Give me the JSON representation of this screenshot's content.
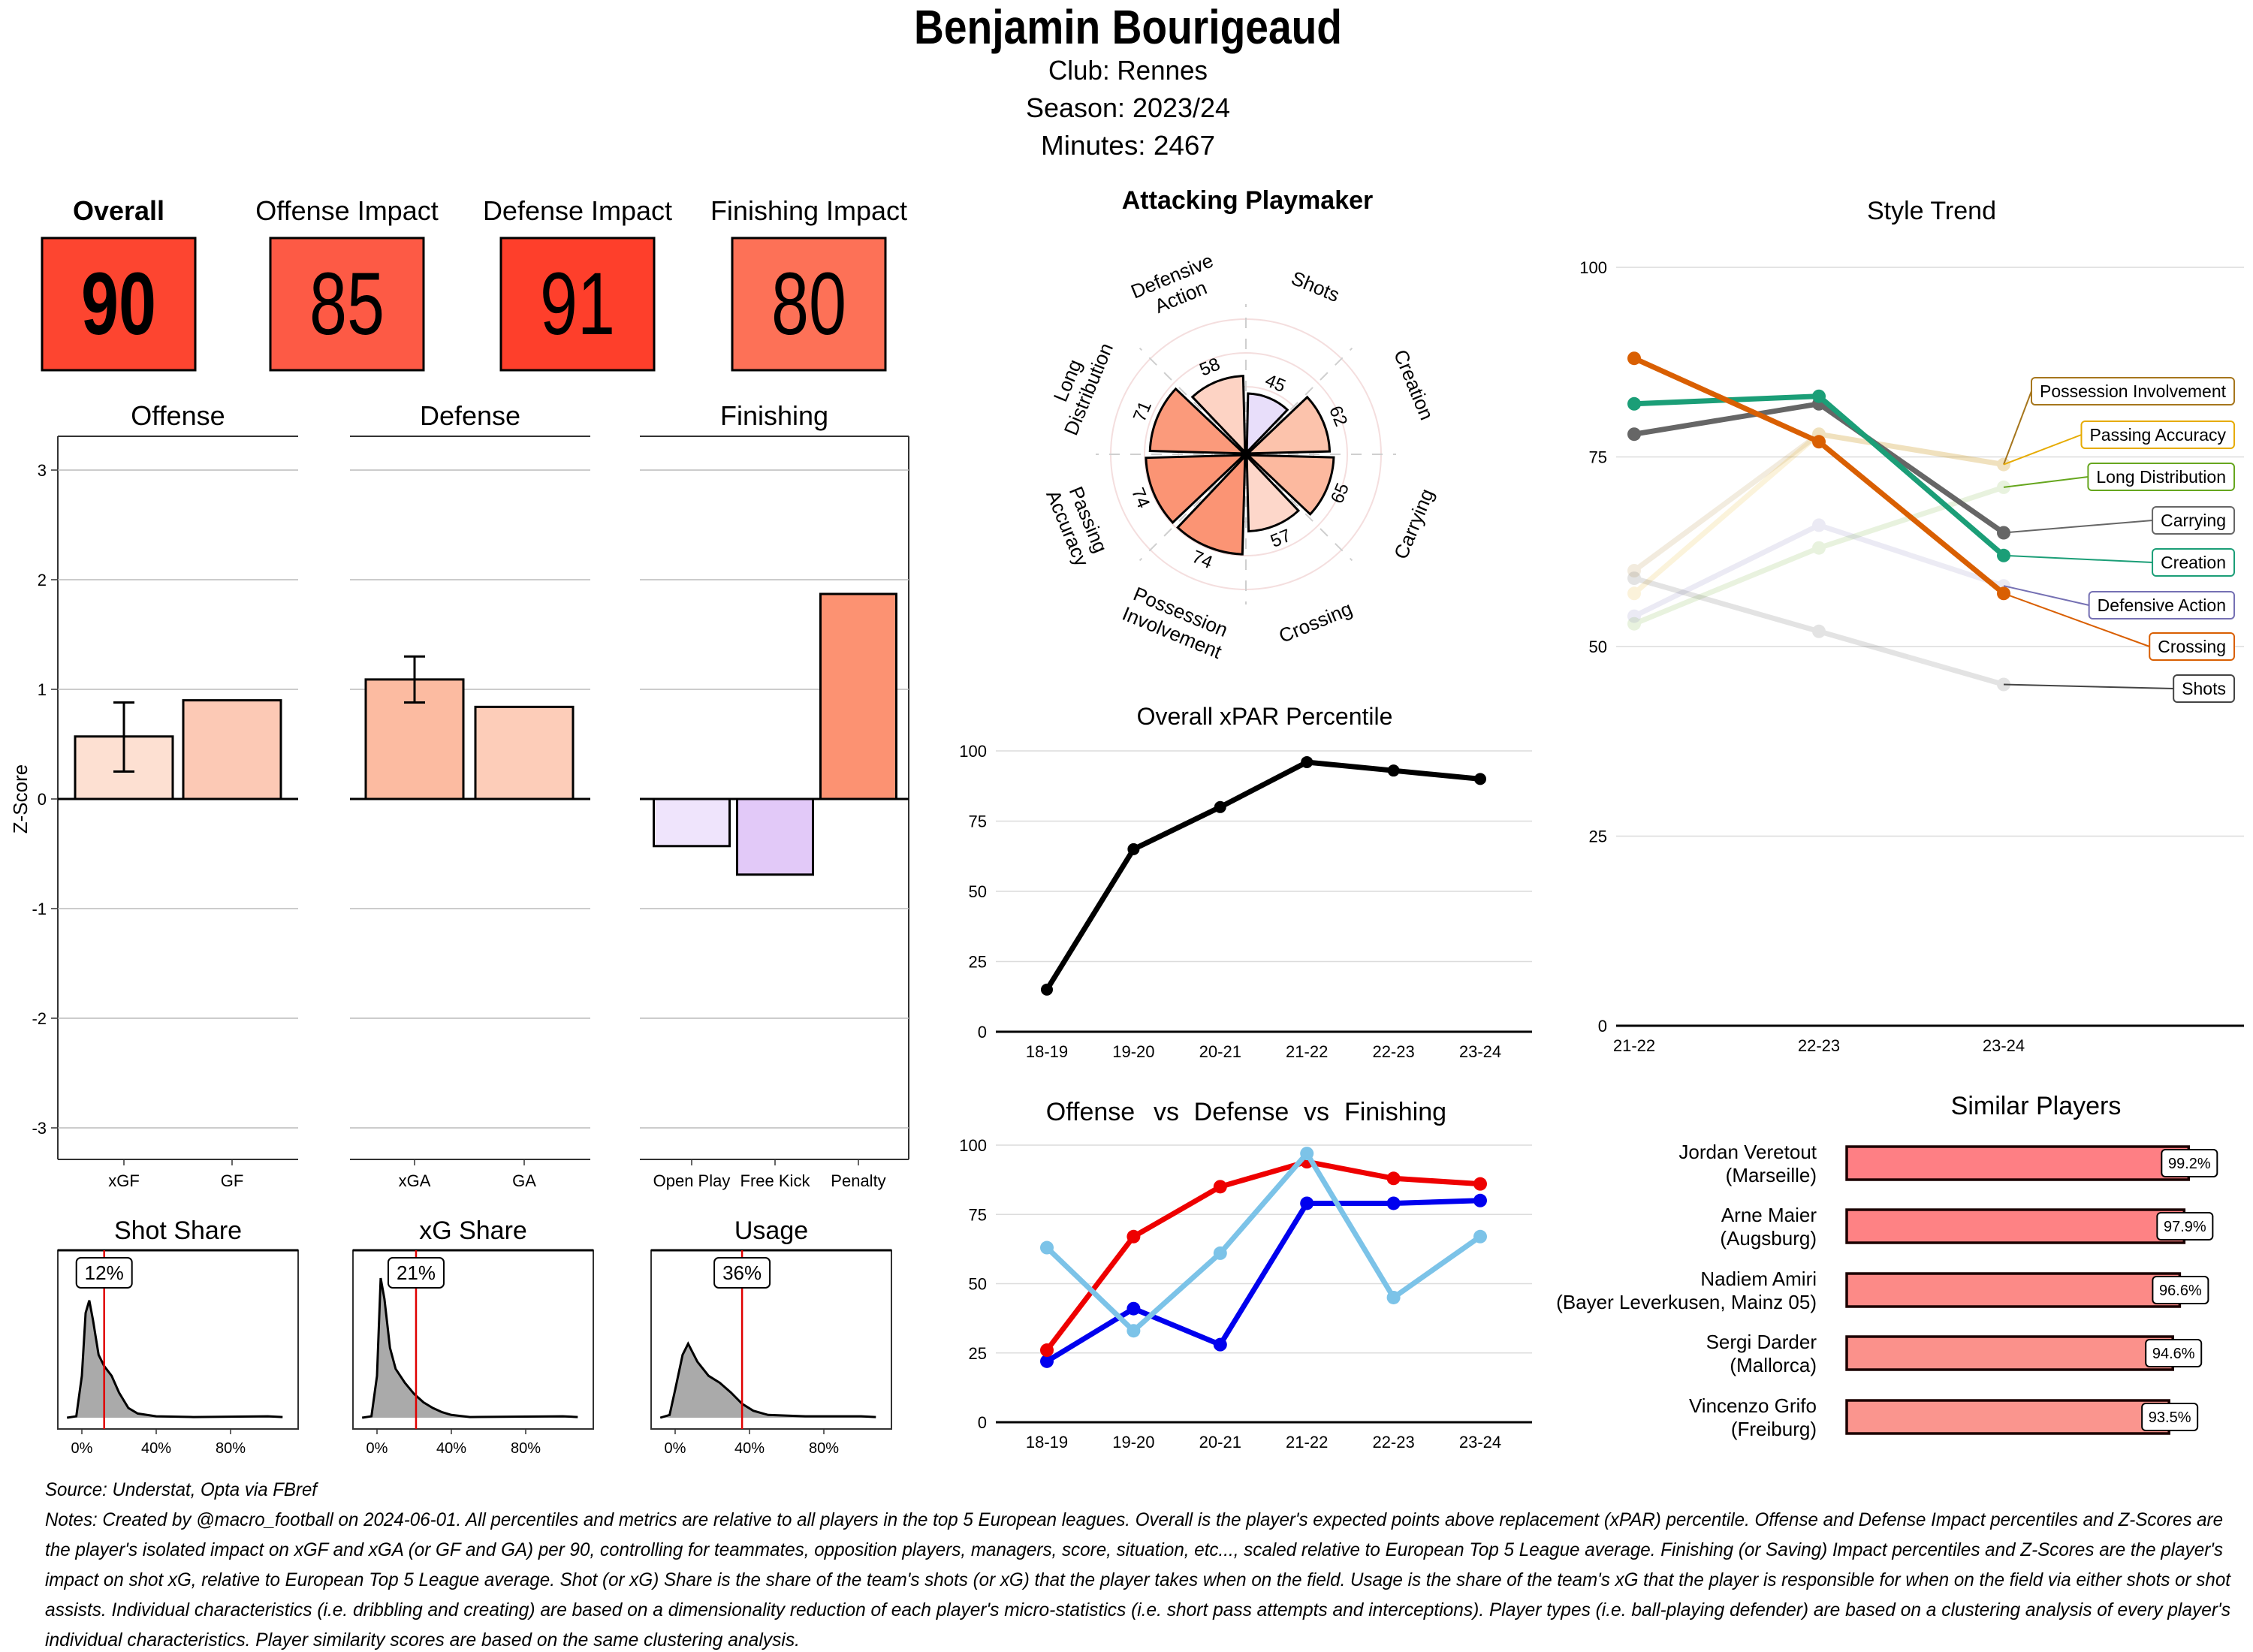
{
  "header": {
    "name": "Benjamin Bourigeaud",
    "club": "Club:  Rennes",
    "season": "Season:  2023/24",
    "minutes": "Minutes:  2467"
  },
  "scores": [
    {
      "label": "Overall",
      "value": "90",
      "color": "#fd4530"
    },
    {
      "label": "Offense Impact",
      "value": "85",
      "color": "#fd5a45"
    },
    {
      "label": "Defense Impact",
      "value": "91",
      "color": "#fe3f2b"
    },
    {
      "label": "Finishing Impact",
      "value": "80",
      "color": "#fd7157"
    }
  ],
  "chart_data": [
    {
      "type": "bar",
      "ylabel": "Z-Score",
      "ylim": [
        -3.3,
        3.3
      ],
      "yticks": [
        "3",
        "2",
        "1",
        "0",
        "-1",
        "-2",
        "-3"
      ],
      "grid": true,
      "facets": [
        {
          "title": "Offense",
          "categories": [
            "xGF",
            "GF"
          ],
          "values": [
            0.57,
            0.9
          ],
          "error": [
            [
              0.25,
              0.88
            ],
            null
          ],
          "colors": [
            "#fde0d2",
            "#fcc9b5"
          ]
        },
        {
          "title": "Defense",
          "categories": [
            "xGA",
            "GA"
          ],
          "values": [
            1.09,
            0.84
          ],
          "error": [
            [
              0.88,
              1.3
            ],
            null
          ],
          "colors": [
            "#fcbba1",
            "#fdcdb9"
          ]
        },
        {
          "title": "Finishing",
          "categories": [
            "Open Play",
            "Free Kick",
            "Penalty"
          ],
          "values": [
            -0.43,
            -0.69,
            1.87
          ],
          "error": [
            null,
            null,
            null
          ],
          "colors": [
            "#efe4fc",
            "#e2c9f8",
            "#fc9272"
          ]
        }
      ]
    },
    {
      "type": "area",
      "title": "Shot Share",
      "value": 12,
      "value_label": "12%",
      "xticks": [
        "0%",
        "40%",
        "80%"
      ],
      "density": [
        [
          -8,
          0
        ],
        [
          -3,
          0.01
        ],
        [
          0,
          0.3
        ],
        [
          2,
          0.75
        ],
        [
          4,
          0.84
        ],
        [
          6,
          0.7
        ],
        [
          9,
          0.45
        ],
        [
          12,
          0.37
        ],
        [
          16,
          0.3
        ],
        [
          20,
          0.18
        ],
        [
          25,
          0.07
        ],
        [
          30,
          0.03
        ],
        [
          40,
          0.01
        ],
        [
          60,
          0.005
        ],
        [
          100,
          0.01
        ],
        [
          108,
          0.005
        ]
      ]
    },
    {
      "type": "area",
      "title": "xG Share",
      "value": 21,
      "value_label": "21%",
      "xticks": [
        "0%",
        "40%",
        "80%"
      ],
      "density": [
        [
          -8,
          0
        ],
        [
          -3,
          0.01
        ],
        [
          0,
          0.3
        ],
        [
          2,
          1.0
        ],
        [
          4,
          0.85
        ],
        [
          7,
          0.5
        ],
        [
          10,
          0.35
        ],
        [
          15,
          0.25
        ],
        [
          20,
          0.17
        ],
        [
          25,
          0.11
        ],
        [
          30,
          0.07
        ],
        [
          35,
          0.04
        ],
        [
          40,
          0.02
        ],
        [
          50,
          0.005
        ],
        [
          100,
          0.01
        ],
        [
          108,
          0.005
        ]
      ]
    },
    {
      "type": "area",
      "title": "Usage",
      "value": 36,
      "value_label": "36%",
      "xticks": [
        "0%",
        "40%",
        "80%"
      ],
      "density": [
        [
          -8,
          0
        ],
        [
          -3,
          0.02
        ],
        [
          0,
          0.2
        ],
        [
          4,
          0.45
        ],
        [
          7,
          0.53
        ],
        [
          12,
          0.4
        ],
        [
          18,
          0.3
        ],
        [
          24,
          0.25
        ],
        [
          30,
          0.18
        ],
        [
          36,
          0.1
        ],
        [
          42,
          0.05
        ],
        [
          50,
          0.02
        ],
        [
          70,
          0.01
        ],
        [
          100,
          0.01
        ],
        [
          108,
          0.005
        ]
      ]
    },
    {
      "type": "bar",
      "polar": true,
      "title": "Attacking Playmaker",
      "categories": [
        "Shots",
        "Creation",
        "Carrying",
        "Crossing",
        "Possession Involvement",
        "Passing Accuracy",
        "Long Distribution",
        "Defensive Action"
      ],
      "label_lines": [
        [
          "Shots"
        ],
        [
          "Creation"
        ],
        [
          "Carrying"
        ],
        [
          "Crossing"
        ],
        [
          "Possession",
          "Involvement"
        ],
        [
          "Passing",
          "Accuracy"
        ],
        [
          "Long",
          "Distribution"
        ],
        [
          "Defensive",
          "Action"
        ]
      ],
      "values": [
        45,
        62,
        65,
        57,
        74,
        74,
        71,
        58
      ],
      "value_labels": [
        "45",
        "62",
        "65",
        "57",
        "74",
        "74",
        "71",
        "58"
      ],
      "colors": [
        "#e8defa",
        "#fcc3ac",
        "#fcb99f",
        "#fdd7ca",
        "#fb9474",
        "#fb9474",
        "#fb9a7b",
        "#fdd3c4"
      ],
      "ylim": [
        0,
        100
      ]
    },
    {
      "type": "line",
      "title": "Overall xPAR Percentile",
      "categories": [
        "18-19",
        "19-20",
        "20-21",
        "21-22",
        "22-23",
        "23-24"
      ],
      "values": [
        15,
        65,
        80,
        96,
        93,
        90
      ],
      "ylim": [
        0,
        100
      ],
      "yticks": [
        "0",
        "25",
        "50",
        "75",
        "100"
      ],
      "color": "#000000"
    },
    {
      "type": "line",
      "title_parts": [
        {
          "text": "Offense",
          "color": "#0000ee"
        },
        {
          "text": "vs",
          "color": "#000000"
        },
        {
          "text": "Defense",
          "color": "#ee0000"
        },
        {
          "text": "vs",
          "color": "#000000"
        },
        {
          "text": "Finishing",
          "color": "#7cc3e8"
        }
      ],
      "categories": [
        "18-19",
        "19-20",
        "20-21",
        "21-22",
        "22-23",
        "23-24"
      ],
      "series": [
        {
          "name": "Offense",
          "values": [
            22,
            41,
            28,
            79,
            79,
            80
          ],
          "color": "#0000ee"
        },
        {
          "name": "Defense",
          "values": [
            26,
            67,
            85,
            94,
            88,
            86
          ],
          "color": "#ee0000"
        },
        {
          "name": "Finishing",
          "values": [
            63,
            33,
            61,
            97,
            45,
            67
          ],
          "color": "#7cc3e8"
        }
      ],
      "ylim": [
        0,
        100
      ],
      "yticks": [
        "0",
        "25",
        "50",
        "75",
        "100"
      ]
    },
    {
      "type": "line",
      "title": "Style Trend",
      "categories": [
        "21-22",
        "22-23",
        "23-24"
      ],
      "ylim": [
        0,
        100
      ],
      "yticks": [
        "0",
        "25",
        "50",
        "75",
        "100"
      ],
      "series": [
        {
          "name": "Possession Involvement",
          "values": [
            60,
            78,
            74
          ],
          "color": "#a6761d",
          "highlighted": false
        },
        {
          "name": "Passing Accuracy",
          "values": [
            57,
            78,
            74
          ],
          "color": "#e6ab02",
          "highlighted": false
        },
        {
          "name": "Long Distribution",
          "values": [
            53,
            63,
            71
          ],
          "color": "#66a61e",
          "highlighted": false
        },
        {
          "name": "Carrying",
          "values": [
            78,
            82,
            65
          ],
          "color": "#666666",
          "highlighted": true
        },
        {
          "name": "Creation",
          "values": [
            82,
            83,
            62
          ],
          "color": "#1b9e77",
          "highlighted": true
        },
        {
          "name": "Defensive Action",
          "values": [
            54,
            66,
            58
          ],
          "color": "#7570b3",
          "highlighted": false
        },
        {
          "name": "Crossing",
          "values": [
            88,
            77,
            57
          ],
          "color": "#d95f02",
          "highlighted": true
        },
        {
          "name": "Shots",
          "values": [
            59,
            52,
            45
          ],
          "color": "#444444",
          "highlighted": false
        }
      ]
    },
    {
      "type": "bar",
      "title": "Similar Players",
      "players": [
        {
          "name": "Jordan Veretout",
          "club": "(Marseille)",
          "value": 99.2,
          "label": "99.2%",
          "color": "#fe7f84"
        },
        {
          "name": "Arne Maier",
          "club": "(Augsburg)",
          "value": 97.9,
          "label": "97.9%",
          "color": "#fe8284"
        },
        {
          "name": "Nadiem Amiri",
          "club": "(Bayer Leverkusen, Mainz 05)",
          "value": 96.6,
          "label": "96.6%",
          "color": "#fc8a87"
        },
        {
          "name": "Sergi Darder",
          "club": "(Mallorca)",
          "value": 94.6,
          "label": "94.6%",
          "color": "#fb918b"
        },
        {
          "name": "Vincenzo Grifo",
          "club": "(Freiburg)",
          "value": 93.5,
          "label": "93.5%",
          "color": "#fa958e"
        }
      ]
    }
  ],
  "footer": {
    "source": "Source: Understat, Opta via FBref",
    "notes_lines": [
      "Notes: Created by @macro_football on 2024-06-01. All percentiles and metrics are relative to all players in the top 5 European leagues. Overall is the player's expected points above replacement (xPAR) percentile. Offense and Defense Impact percentiles and Z-Scores are",
      "the player's isolated impact on xGF and xGA (or GF and GA) per 90, controlling for teammates, opposition players, managers, score, situation, etc..., scaled relative to European Top 5 League average. Finishing (or Saving) Impact percentiles and Z-Scores are the player's",
      "impact on shot xG, relative to European Top 5 League average. Shot (or xG) Share is the share of the team's shots (or xG) that the player takes when on the field. Usage is the share of the team's xG that the player is responsible for when on the field via either shots or shot",
      "assists. Individual characteristics (i.e. dribbling and creating) are based on a dimensionality reduction of each player's micro-statistics (i.e. short pass attempts and interceptions). Player types (i.e. ball-playing defender) are based on a clustering analysis of every player's",
      "individual characteristics. Player similarity scores are based on the same clustering analysis."
    ]
  }
}
